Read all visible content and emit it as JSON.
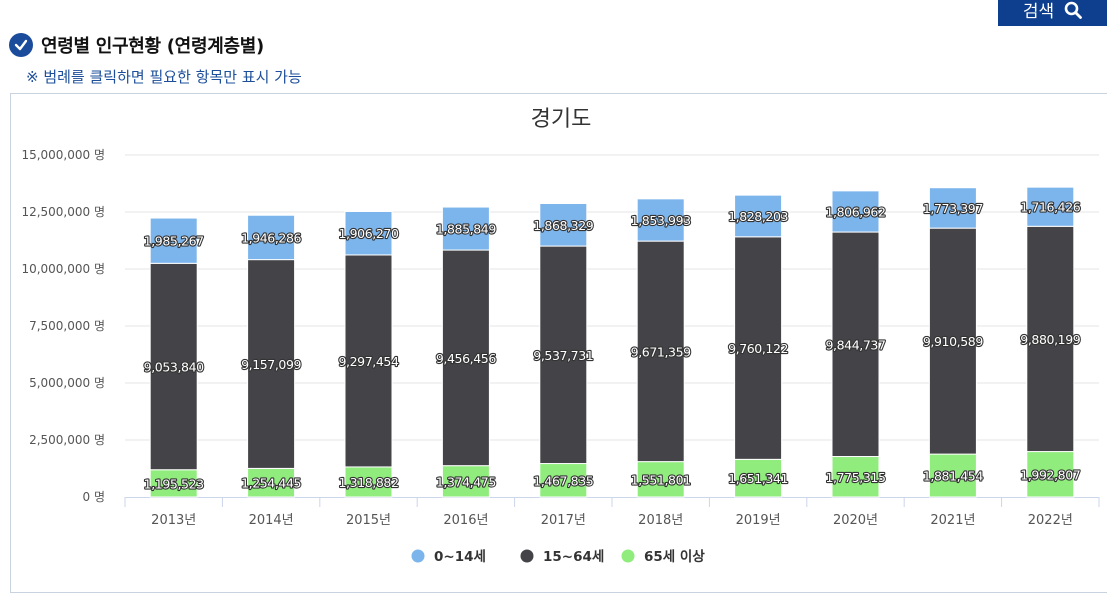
{
  "header": {
    "search_label": "검색",
    "section_title": "연령별 인구현황 (연령계층별)",
    "note": "※ 범례를 클릭하면 필요한 항목만 표시 가능"
  },
  "colors": {
    "young": "#7cb5ec",
    "working": "#434348",
    "elderly": "#90ed7d",
    "brand": "#0e3f8f"
  },
  "chart_data": {
    "type": "bar",
    "stacked": true,
    "title": "경기도",
    "categories": [
      "2013년",
      "2014년",
      "2015년",
      "2016년",
      "2017년",
      "2018년",
      "2019년",
      "2020년",
      "2021년",
      "2022년"
    ],
    "series": [
      {
        "name": "0~14세",
        "color": "#7cb5ec",
        "values": [
          1985267,
          1946286,
          1906270,
          1885849,
          1868329,
          1853993,
          1828203,
          1806962,
          1773397,
          1716426
        ],
        "labels": [
          "1,985,267",
          "1,946,286",
          "1,906,270",
          "1,885,849",
          "1,868,329",
          "1,853,993",
          "1,828,203",
          "1,806,962",
          "1,773,397",
          "1,716,426"
        ]
      },
      {
        "name": "15~64세",
        "color": "#434348",
        "values": [
          9053840,
          9157099,
          9297454,
          9456456,
          9537731,
          9671359,
          9760122,
          9844737,
          9910589,
          9880199
        ],
        "labels": [
          "9,053,840",
          "9,157,099",
          "9,297,454",
          "9,456,456",
          "9,537,731",
          "9,671,359",
          "9,760,122",
          "9,844,737",
          "9,910,589",
          "9,880,199"
        ]
      },
      {
        "name": "65세 이상",
        "color": "#90ed7d",
        "values": [
          1195523,
          1254445,
          1318882,
          1374475,
          1467835,
          1551801,
          1651341,
          1775315,
          1881454,
          1992807
        ],
        "labels": [
          "1,195,523",
          "1,254,445",
          "1,318,882",
          "1,374,475",
          "1,467,835",
          "1,551,801",
          "1,651,341",
          "1,775,315",
          "1,881,454",
          "1,992,807"
        ]
      }
    ],
    "y_ticks": [
      0,
      2500000,
      5000000,
      7500000,
      10000000,
      12500000,
      15000000
    ],
    "y_tick_labels": [
      "0 명",
      "2,500,000 명",
      "5,000,000 명",
      "7,500,000 명",
      "10,000,000 명",
      "12,500,000 명",
      "15,000,000 명"
    ],
    "ylim": [
      0,
      15000000
    ],
    "legend": [
      "0~14세",
      "15~64세",
      "65세 이상"
    ]
  }
}
